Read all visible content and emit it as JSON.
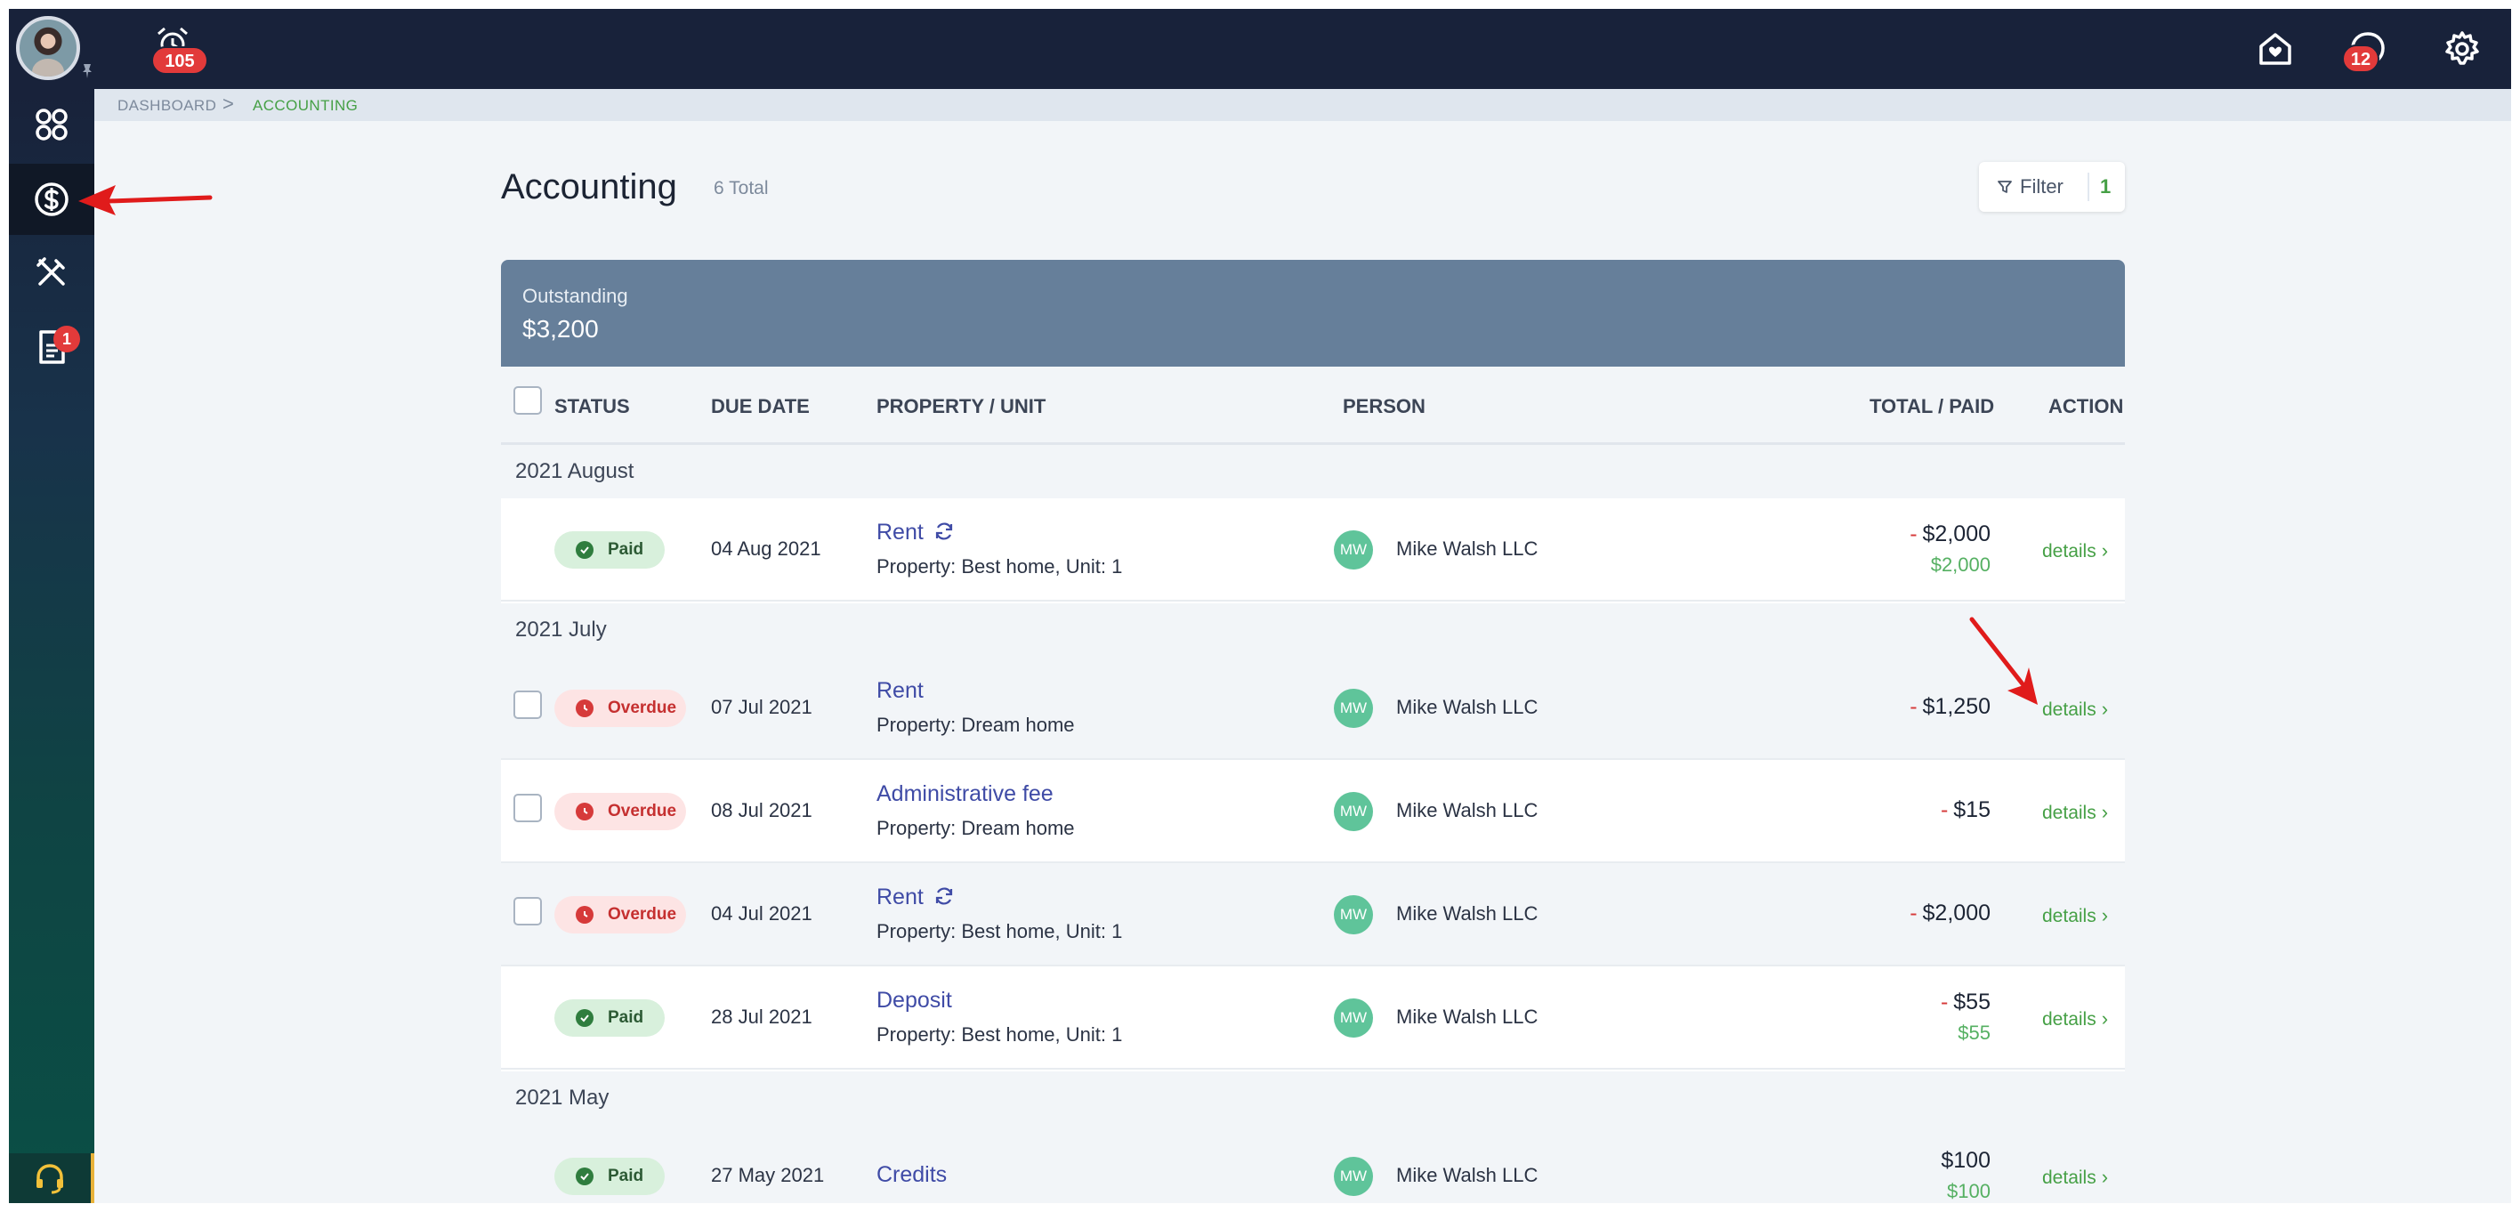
{
  "topbar": {
    "alarm_badge": "105",
    "notifications_badge": "12"
  },
  "sidebar": {
    "items": [
      {
        "name": "dashboard",
        "icon": "apps-grid-icon"
      },
      {
        "name": "accounting",
        "icon": "dollar-circle-icon",
        "active": true
      },
      {
        "name": "maintenance",
        "icon": "tools-icon"
      },
      {
        "name": "documents",
        "icon": "document-icon",
        "badge": "1"
      }
    ],
    "support_icon": "headset-icon"
  },
  "breadcrumb": {
    "items": [
      "DASHBOARD",
      "ACCOUNTING"
    ],
    "separator": ">"
  },
  "page": {
    "title": "Accounting",
    "total": "6 Total",
    "filter_label": "Filter",
    "filter_count": "1"
  },
  "summary": {
    "label": "Outstanding",
    "value": "$3,200"
  },
  "table": {
    "columns": [
      "STATUS",
      "DUE DATE",
      "PROPERTY / UNIT",
      "PERSON",
      "TOTAL / PAID",
      "ACTION"
    ],
    "groups": [
      {
        "label": "2021 August",
        "rows": [
          {
            "status": "Paid",
            "due": "04 Aug 2021",
            "title": "Rent",
            "recurring": true,
            "property": "Property: Best home, Unit: 1",
            "initials": "MW",
            "person": "Mike Walsh LLC",
            "minus": "-",
            "total": "$2,000",
            "paid": "$2,000",
            "action": "details"
          }
        ]
      },
      {
        "label": "2021 July",
        "rows": [
          {
            "status": "Overdue",
            "due": "07 Jul 2021",
            "title": "Rent",
            "recurring": false,
            "property": "Property: Dream home",
            "initials": "MW",
            "person": "Mike Walsh LLC",
            "minus": "-",
            "total": "$1,250",
            "paid": "",
            "action": "details"
          },
          {
            "status": "Overdue",
            "due": "08 Jul 2021",
            "title": "Administrative fee",
            "recurring": false,
            "property": "Property: Dream home",
            "initials": "MW",
            "person": "Mike Walsh LLC",
            "minus": "-",
            "total": "$15",
            "paid": "",
            "action": "details"
          },
          {
            "status": "Overdue",
            "due": "04 Jul 2021",
            "title": "Rent",
            "recurring": true,
            "property": "Property: Best home, Unit: 1",
            "initials": "MW",
            "person": "Mike Walsh LLC",
            "minus": "-",
            "total": "$2,000",
            "paid": "",
            "action": "details"
          },
          {
            "status": "Paid",
            "due": "28 Jul 2021",
            "title": "Deposit",
            "recurring": false,
            "property": "Property: Best home, Unit: 1",
            "initials": "MW",
            "person": "Mike Walsh LLC",
            "minus": "-",
            "total": "$55",
            "paid": "$55",
            "action": "details"
          }
        ]
      },
      {
        "label": "2021 May",
        "rows": [
          {
            "status": "Paid",
            "due": "27 May 2021",
            "title": "Credits",
            "recurring": false,
            "property": "",
            "initials": "MW",
            "person": "Mike Walsh LLC",
            "minus": "",
            "total": "$100",
            "paid": "$100",
            "action": "details"
          }
        ]
      }
    ]
  },
  "colors": {
    "nav_dark": "#18223a",
    "accent_green": "#46a046",
    "link_blue": "#3f4ba6",
    "summary_bg": "#667f9a",
    "overdue_red": "#d63a3a",
    "annotation_red": "#e01b1b"
  }
}
